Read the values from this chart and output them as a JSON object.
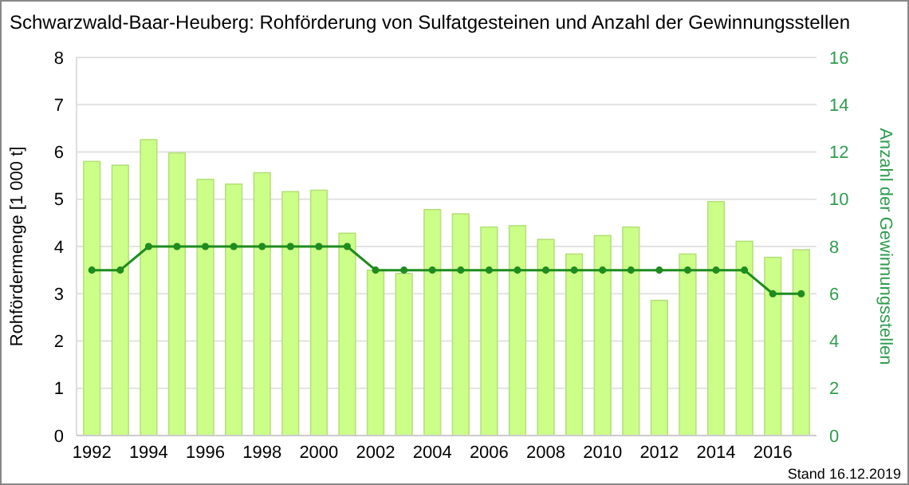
{
  "chart_data": {
    "type": "bar",
    "title": "Schwarzwald-Baar-Heuberg: Rohförderung von Sulfatgesteinen und Anzahl der Gewinnungsstellen",
    "ylabel": "Rohfördermenge [1 000 t]",
    "y2label": "Anzahl der Gewinnungsstellen",
    "categories": [
      "1992",
      null,
      "1994",
      null,
      "1996",
      null,
      "1998",
      null,
      "2000",
      null,
      "2002",
      null,
      "2004",
      null,
      "2006",
      null,
      "2008",
      null,
      "2010",
      null,
      "2012",
      null,
      "2014",
      null,
      "2016",
      null
    ],
    "series": [
      {
        "color": "#ccff88",
        "values": [
          5.8,
          5.72,
          6.26,
          5.98,
          5.42,
          5.32,
          5.56,
          5.16,
          5.19,
          4.28,
          3.5,
          3.43,
          4.78,
          4.69,
          4.41,
          4.44,
          4.15,
          3.84,
          4.23,
          4.41,
          2.86,
          3.84,
          4.95,
          4.11,
          3.77,
          3.93
        ]
      },
      {
        "type": "line",
        "axis": "y2",
        "color": "#1e8c1e",
        "values": [
          7,
          7,
          8,
          8,
          8,
          8,
          8,
          8,
          8,
          8,
          7,
          7,
          7,
          7,
          7,
          7,
          7,
          7,
          7,
          7,
          7,
          7,
          7,
          7,
          6,
          6
        ]
      }
    ],
    "ylim": [
      0,
      8
    ],
    "yticks": [
      0,
      1,
      2,
      3,
      4,
      5,
      6,
      7,
      8
    ],
    "y2lim": [
      0,
      16
    ],
    "y2ticks": [
      0,
      2,
      4,
      6,
      8,
      10,
      12,
      14,
      16
    ],
    "grid": "y",
    "marker": "circle",
    "annotations": [
      "Stand 16.12.2019"
    ]
  }
}
